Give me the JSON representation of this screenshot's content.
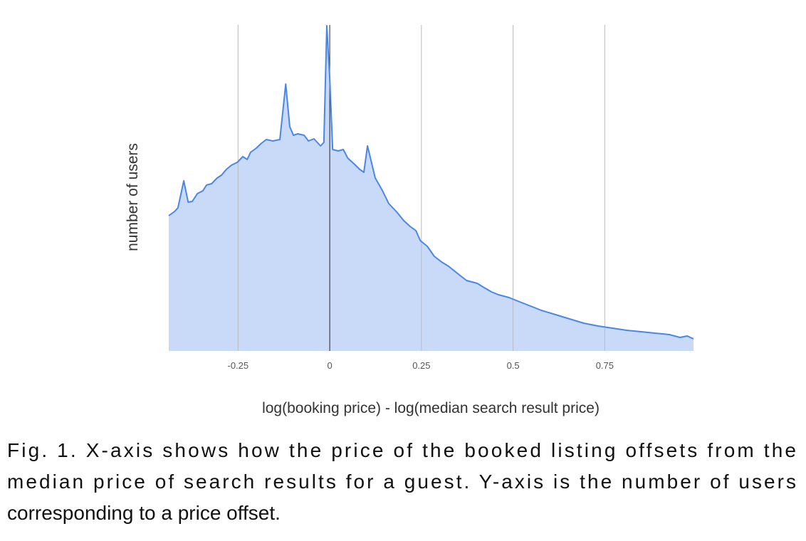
{
  "chart_data": {
    "type": "area",
    "x_label": "log(booking price) - log(median search result price)",
    "y_label": "number of users",
    "color": "#4a86e8",
    "fill": "#c9daf8",
    "grid": true,
    "xlim": [
      -0.439,
      0.992
    ],
    "ylim": [
      0,
      458
    ],
    "xticks": [
      -0.25,
      0,
      0.25,
      0.5,
      0.75
    ],
    "x": [
      -0.439,
      -0.423,
      -0.414,
      -0.398,
      -0.386,
      -0.375,
      -0.361,
      -0.346,
      -0.336,
      -0.322,
      -0.307,
      -0.295,
      -0.282,
      -0.268,
      -0.252,
      -0.237,
      -0.225,
      -0.216,
      -0.2,
      -0.188,
      -0.173,
      -0.155,
      -0.136,
      -0.12,
      -0.109,
      -0.099,
      -0.087,
      -0.07,
      -0.058,
      -0.043,
      -0.025,
      -0.016,
      -0.008,
      0,
      0.008,
      0.023,
      0.037,
      0.049,
      0.066,
      0.082,
      0.093,
      0.103,
      0.111,
      0.124,
      0.144,
      0.161,
      0.183,
      0.202,
      0.219,
      0.235,
      0.247,
      0.266,
      0.285,
      0.305,
      0.324,
      0.353,
      0.373,
      0.402,
      0.421,
      0.441,
      0.46,
      0.489,
      0.518,
      0.548,
      0.577,
      0.616,
      0.654,
      0.693,
      0.732,
      0.771,
      0.81,
      0.849,
      0.887,
      0.926,
      0.955,
      0.975,
      0.992
    ],
    "values": [
      190,
      196,
      201,
      239,
      209,
      210,
      221,
      225,
      233,
      235,
      243,
      247,
      255,
      261,
      265,
      273,
      269,
      279,
      285,
      291,
      297,
      295,
      297,
      375,
      315,
      303,
      305,
      303,
      295,
      298,
      288,
      293,
      457,
      383,
      283,
      281,
      283,
      271,
      263,
      255,
      251,
      288,
      271,
      243,
      225,
      207,
      195,
      183,
      175,
      169,
      155,
      147,
      133,
      125,
      119,
      107,
      99,
      95,
      89,
      83,
      79,
      75,
      69,
      63,
      57,
      51,
      45,
      39,
      35,
      32,
      29,
      27,
      25,
      23,
      19,
      21,
      17
    ]
  },
  "caption": {
    "lines": [
      "Fig. 1.  X-axis shows how the price of the booked listing offsets from the",
      "median price of search results for a guest.  Y-axis is the number of users",
      "corresponding to a price offset."
    ]
  }
}
